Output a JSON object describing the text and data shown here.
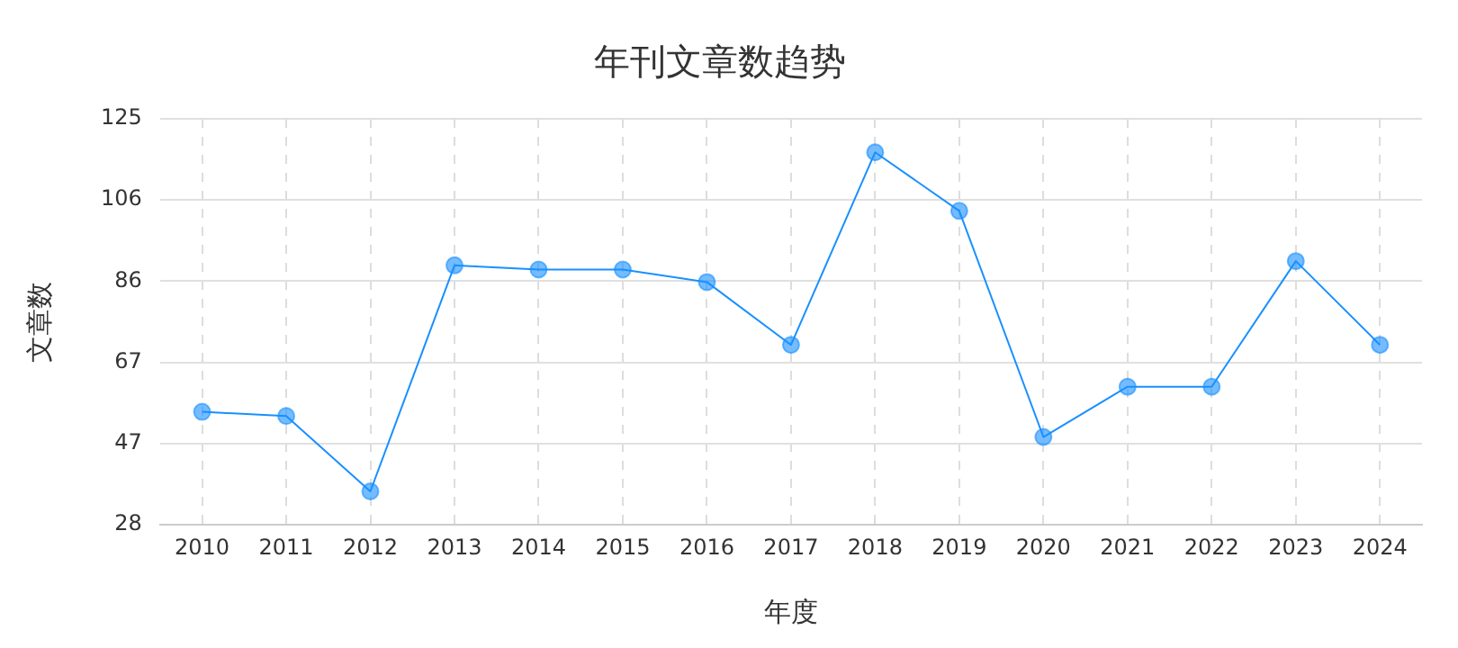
{
  "chart_data": {
    "type": "line",
    "title": "年刊文章数趋势",
    "xlabel": "年度",
    "ylabel": "文章数",
    "categories": [
      "2010",
      "2011",
      "2012",
      "2013",
      "2014",
      "2015",
      "2016",
      "2017",
      "2018",
      "2019",
      "2020",
      "2021",
      "2022",
      "2023",
      "2024"
    ],
    "series": [
      {
        "color": "#1890ff",
        "values": [
          55,
          54,
          36,
          90,
          89,
          89,
          86,
          71,
          117,
          103,
          49,
          61,
          61,
          91,
          71
        ]
      }
    ],
    "ylim": [
      28,
      125
    ],
    "yticks": [
      28,
      {
        "value": 47.4,
        "label": "47"
      },
      {
        "value": 66.8,
        "label": "67"
      },
      {
        "value": 86.2,
        "label": "86"
      },
      {
        "value": 105.6,
        "label": "106"
      },
      125
    ],
    "grid": true,
    "marker": "circle",
    "line_style": "solid",
    "legend": false
  }
}
